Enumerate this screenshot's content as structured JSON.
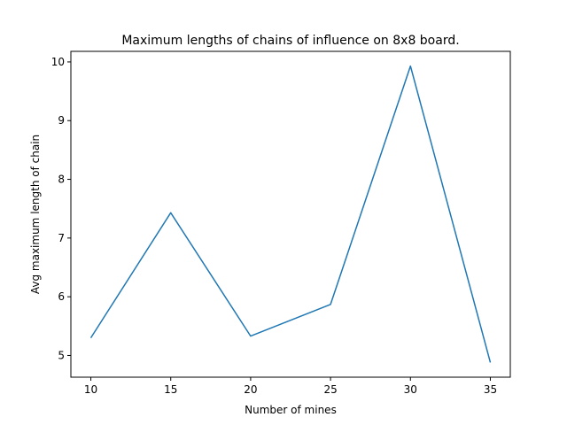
{
  "chart_data": {
    "type": "line",
    "title": "Maximum lengths of chains of influence on 8x8 board.",
    "xlabel": "Number of mines",
    "ylabel": "Avg maximum length of chain",
    "x": [
      10,
      15,
      20,
      25,
      30,
      35
    ],
    "series": [
      {
        "values": [
          5.3,
          7.43,
          5.33,
          5.87,
          9.93,
          4.88
        ]
      }
    ],
    "xticks": [
      10,
      15,
      20,
      25,
      30,
      35
    ],
    "yticks": [
      5,
      6,
      7,
      8,
      9,
      10
    ],
    "xlim": [
      8.75,
      36.25
    ],
    "ylim": [
      4.63,
      10.18
    ],
    "grid": false,
    "colors": {
      "line": "#1f77b4",
      "axes": "#000000"
    }
  }
}
